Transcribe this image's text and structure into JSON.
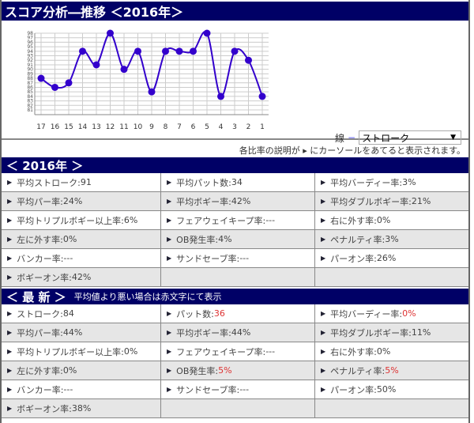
{
  "title": "スコア分析―推移 ＜2016年＞",
  "chart_data": {
    "type": "line",
    "title": "",
    "xlabel": "",
    "ylabel": "",
    "categories": [
      "17",
      "16",
      "15",
      "14",
      "13",
      "12",
      "11",
      "10",
      "9",
      "8",
      "7",
      "6",
      "5",
      "4",
      "3",
      "2",
      "1"
    ],
    "values": [
      88,
      86,
      87,
      94,
      91,
      98,
      90,
      94,
      85,
      94,
      94,
      94,
      98,
      84,
      94,
      92,
      84
    ],
    "yticks": [
      81,
      82,
      83,
      84,
      85,
      86,
      87,
      88,
      89,
      90,
      91,
      92,
      93,
      94,
      95,
      96,
      97,
      98
    ],
    "ylim": [
      81,
      98
    ],
    "grid": true,
    "color": "#3300cc"
  },
  "line_select": {
    "label": "線",
    "dash": "−",
    "value": "ストローク",
    "arrow": "▼"
  },
  "note": "各比率の説明が ▸ にカーソールをあてると表示されます。",
  "year_section": {
    "header": "＜ 2016年 ＞",
    "items": [
      {
        "label": "平均ストローク:",
        "value": "91"
      },
      {
        "label": "平均パット数:",
        "value": "34"
      },
      {
        "label": "平均バーディー率:",
        "value": "3%"
      },
      {
        "label": "平均パー率:",
        "value": "24%"
      },
      {
        "label": "平均ボギー率:",
        "value": "42%"
      },
      {
        "label": "平均ダブルボギー率:",
        "value": "21%"
      },
      {
        "label": "平均トリプルボギー以上率:",
        "value": "6%"
      },
      {
        "label": "フェアウェイキープ率:",
        "value": "---"
      },
      {
        "label": "右に外す率: ",
        "value": "0%"
      },
      {
        "label": "左に外す率: ",
        "value": "0%"
      },
      {
        "label": "OB発生率:",
        "value": "4%"
      },
      {
        "label": "ペナルティ率:",
        "value": "3%"
      },
      {
        "label": "バンカー率:",
        "value": "---"
      },
      {
        "label": "サンドセーブ率:",
        "value": "---"
      },
      {
        "label": "パーオン率:",
        "value": "26%"
      },
      {
        "label": "ボギーオン率:",
        "value": "42%"
      }
    ]
  },
  "latest_section": {
    "header": "＜ 最 新 ＞",
    "subtitle": "平均値より悪い場合は赤文字にて表示",
    "items": [
      {
        "label": "ストローク: ",
        "value": "84"
      },
      {
        "label": "パット数: ",
        "value": "36",
        "bad": true
      },
      {
        "label": "平均バーディー率: ",
        "value": "0%",
        "bad": true
      },
      {
        "label": "平均パー率: ",
        "value": "44%"
      },
      {
        "label": "平均ボギー率: ",
        "value": "44%"
      },
      {
        "label": "平均ダブルボギー率: ",
        "value": "11%"
      },
      {
        "label": "平均トリプルボギー以上率: ",
        "value": "0%"
      },
      {
        "label": "フェアウェイキープ率: ",
        "value": "---"
      },
      {
        "label": "右に外す率: ",
        "value": "0%"
      },
      {
        "label": "左に外す率: ",
        "value": "0%"
      },
      {
        "label": "OB発生率: ",
        "value": "5%",
        "bad": true
      },
      {
        "label": "ペナルティ率: ",
        "value": "5%",
        "bad": true
      },
      {
        "label": "バンカー率: ",
        "value": "---"
      },
      {
        "label": "サンドセーブ率: ",
        "value": "---"
      },
      {
        "label": "パーオン率: ",
        "value": "50%"
      },
      {
        "label": "ボギーオン率: ",
        "value": "38%"
      }
    ]
  }
}
